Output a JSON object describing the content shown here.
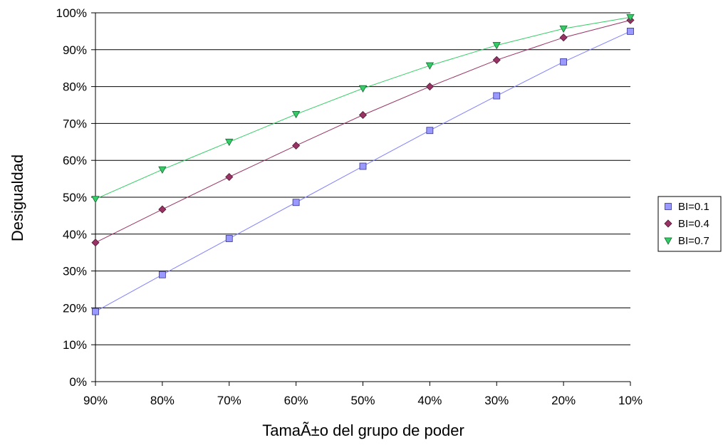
{
  "chart_data": {
    "type": "line",
    "title": "",
    "xlabel": "TamaÃ±o del grupo de poder",
    "ylabel": "Desigualdad",
    "categories": [
      "90%",
      "80%",
      "70%",
      "60%",
      "50%",
      "40%",
      "30%",
      "20%",
      "10%"
    ],
    "y_ticks": [
      "0%",
      "10%",
      "20%",
      "30%",
      "40%",
      "50%",
      "60%",
      "70%",
      "80%",
      "90%",
      "100%"
    ],
    "ylim": [
      0,
      100
    ],
    "grid": true,
    "legend_position": "right",
    "series": [
      {
        "name": "BI=0.1",
        "marker": "square",
        "color": "#9999ff",
        "line_color": "#8080ff",
        "values": [
          19,
          29,
          38.8,
          48.6,
          58.4,
          68.1,
          77.5,
          86.7,
          95
        ]
      },
      {
        "name": "BI=0.4",
        "marker": "diamond",
        "color": "#993366",
        "line_color": "#993366",
        "values": [
          37.7,
          46.7,
          55.5,
          64,
          72.3,
          80,
          87.2,
          93.3,
          98
        ]
      },
      {
        "name": "BI=0.7",
        "marker": "triangle-down",
        "color": "#33cc66",
        "line_color": "#33cc66",
        "values": [
          49.5,
          57.5,
          65,
          72.5,
          79.5,
          85.7,
          91.2,
          95.7,
          98.8
        ]
      }
    ]
  }
}
